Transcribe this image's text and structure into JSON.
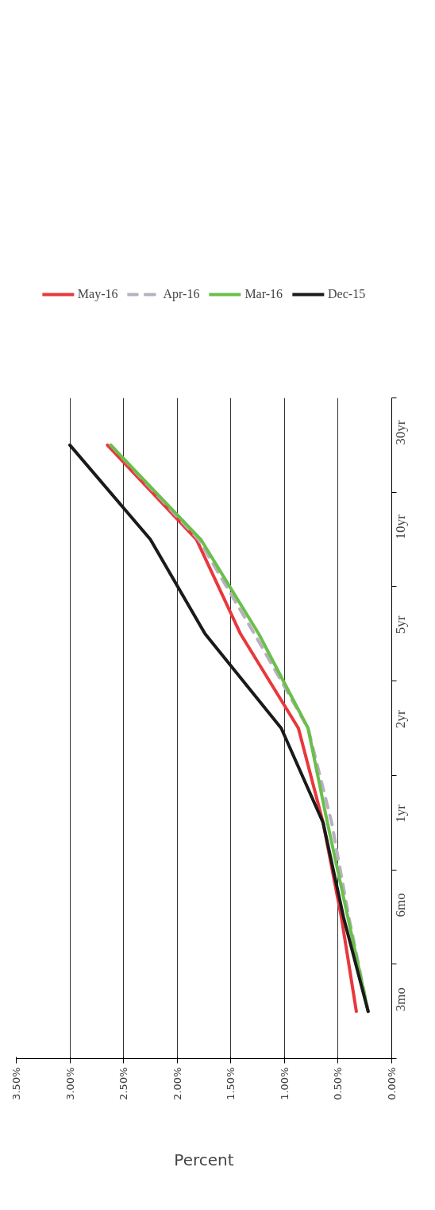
{
  "chart_data": {
    "type": "line",
    "orientation": "horizontal",
    "xlabel": "Percent",
    "categories": [
      "30yr",
      "10yr",
      "5yr",
      "2yr",
      "1yr",
      "6mo",
      "3mo"
    ],
    "series": [
      {
        "name": "May-16",
        "color": "#e8383d",
        "values": [
          2.65,
          1.82,
          1.41,
          0.87,
          0.64,
          0.47,
          0.33
        ]
      },
      {
        "name": "Apr-16",
        "color": "#b8b0c0",
        "line_style": "dashed",
        "values": [
          2.62,
          1.8,
          1.28,
          0.78,
          0.56,
          0.4,
          0.22
        ]
      },
      {
        "name": "Mar-16",
        "color": "#6abf4b",
        "values": [
          2.62,
          1.78,
          1.24,
          0.78,
          0.6,
          0.41,
          0.22
        ]
      },
      {
        "name": "Dec-15",
        "color": "#1a1a1a",
        "values": [
          3.0,
          2.25,
          1.74,
          1.03,
          0.64,
          0.45,
          0.22
        ]
      }
    ],
    "xlim": [
      3.5,
      0
    ],
    "xticks": [
      {
        "value": 0,
        "label": "0.00%"
      },
      {
        "value": 0.5,
        "label": "0.50%"
      },
      {
        "value": 1,
        "label": "1.00%"
      },
      {
        "value": 1.5,
        "label": "1.50%"
      },
      {
        "value": 2,
        "label": "2.00%"
      },
      {
        "value": 2.5,
        "label": "2.50%"
      },
      {
        "value": 3,
        "label": "3.00%"
      },
      {
        "value": 3.5,
        "label": "3.50%"
      }
    ],
    "grid": "x",
    "legend": "top",
    "line_style": "solid",
    "marker": "none"
  }
}
